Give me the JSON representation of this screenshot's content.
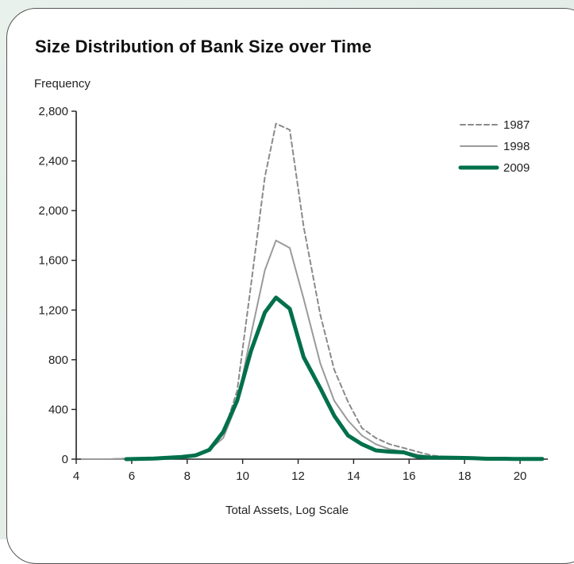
{
  "chart_data": {
    "type": "line",
    "title": "Size Distribution of Bank Size over Time",
    "ylabel": "Frequency",
    "xlabel": "Total Assets, Log Scale",
    "xlim": [
      4,
      21
    ],
    "ylim": [
      0,
      2800
    ],
    "xticks": [
      4,
      6,
      8,
      10,
      12,
      14,
      16,
      18,
      20
    ],
    "yticks": [
      0,
      400,
      800,
      1200,
      1600,
      2000,
      2400,
      2800
    ],
    "ytick_labels": [
      "0",
      "400",
      "800",
      "1,200",
      "1,600",
      "2,000",
      "2,400",
      "2,800"
    ],
    "legend_position": "top-right",
    "series": [
      {
        "name": "1987",
        "color": "#8a8a8a",
        "style": "dashed",
        "x": [
          4.2,
          5.2,
          5.8,
          6.8,
          7.8,
          8.3,
          8.8,
          9.3,
          9.8,
          10.3,
          10.8,
          11.2,
          11.7,
          12.2,
          12.8,
          13.3,
          13.8,
          14.3,
          14.8,
          15.3,
          15.8,
          16.3,
          16.8,
          17.3,
          17.8,
          18.3,
          18.8,
          19.3,
          19.8,
          20.3,
          20.8
        ],
        "y": [
          0,
          0,
          5,
          10,
          20,
          40,
          80,
          200,
          550,
          1400,
          2270,
          2700,
          2650,
          1870,
          1160,
          720,
          460,
          250,
          170,
          120,
          90,
          60,
          30,
          20,
          12,
          10,
          5,
          5,
          4,
          3,
          2
        ]
      },
      {
        "name": "1998",
        "color": "#9a9a9a",
        "style": "solid",
        "x": [
          4.2,
          5.2,
          5.8,
          6.8,
          7.8,
          8.3,
          8.8,
          9.3,
          9.8,
          10.3,
          10.8,
          11.2,
          11.7,
          12.2,
          12.8,
          13.3,
          13.8,
          14.3,
          14.8,
          15.3,
          15.8,
          16.3,
          16.8,
          17.3,
          17.8,
          18.3,
          18.8,
          19.3,
          19.8,
          20.3,
          20.8
        ],
        "y": [
          0,
          0,
          5,
          10,
          20,
          35,
          75,
          170,
          450,
          1000,
          1520,
          1760,
          1700,
          1290,
          770,
          470,
          310,
          190,
          120,
          80,
          60,
          35,
          20,
          15,
          10,
          8,
          4,
          4,
          3,
          2,
          2
        ]
      },
      {
        "name": "2009",
        "color": "#00704a",
        "style": "bold",
        "x": [
          5.8,
          6.8,
          7.8,
          8.3,
          8.8,
          9.3,
          9.8,
          10.3,
          10.8,
          11.2,
          11.7,
          12.2,
          12.8,
          13.3,
          13.8,
          14.3,
          14.8,
          15.3,
          15.8,
          16.3,
          16.8,
          17.3,
          17.8,
          18.3,
          18.8,
          19.3,
          19.8,
          20.3,
          20.8
        ],
        "y": [
          0,
          5,
          18,
          30,
          75,
          220,
          470,
          870,
          1180,
          1300,
          1210,
          820,
          570,
          350,
          190,
          120,
          70,
          60,
          55,
          20,
          12,
          12,
          10,
          8,
          3,
          3,
          2,
          2,
          2
        ]
      }
    ]
  }
}
